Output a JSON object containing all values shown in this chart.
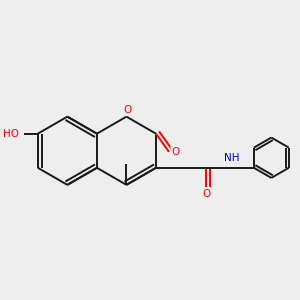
{
  "bg_color": "#eeeeee",
  "bond_color": "#1a1a1a",
  "bond_width": 1.4,
  "atom_colors": {
    "O": "#ff0000",
    "N": "#0000cc",
    "C": "#1a1a1a"
  },
  "figsize": [
    3.0,
    3.0
  ],
  "dpi": 100
}
